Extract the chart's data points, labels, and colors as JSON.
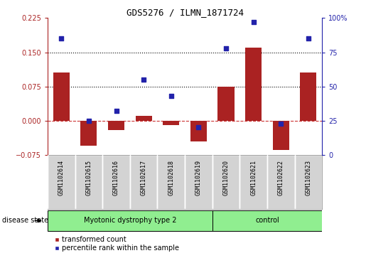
{
  "title": "GDS5276 / ILMN_1871724",
  "samples": [
    "GSM1102614",
    "GSM1102615",
    "GSM1102616",
    "GSM1102617",
    "GSM1102618",
    "GSM1102619",
    "GSM1102620",
    "GSM1102621",
    "GSM1102622",
    "GSM1102623"
  ],
  "red_bars": [
    0.105,
    -0.055,
    -0.02,
    0.01,
    -0.01,
    -0.045,
    0.075,
    0.16,
    -0.065,
    0.105
  ],
  "blue_dots": [
    85,
    25,
    32,
    55,
    43,
    20,
    78,
    97,
    23,
    85
  ],
  "bar_color": "#AA2222",
  "dot_color": "#2222AA",
  "ylim_left": [
    -0.075,
    0.225
  ],
  "ylim_right": [
    0,
    100
  ],
  "yticks_left": [
    -0.075,
    0,
    0.075,
    0.15,
    0.225
  ],
  "yticks_right": [
    0,
    25,
    50,
    75,
    100
  ],
  "hlines": [
    0.075,
    0.15
  ],
  "zero_line": 0,
  "group1_label": "Myotonic dystrophy type 2",
  "group2_label": "control",
  "group1_indices": [
    0,
    1,
    2,
    3,
    4,
    5
  ],
  "group2_indices": [
    6,
    7,
    8,
    9
  ],
  "group1_color": "#90EE90",
  "group2_color": "#90EE90",
  "label_bg_color": "#D3D3D3",
  "disease_state_label": "disease state",
  "legend1_label": "transformed count",
  "legend2_label": "percentile rank within the sample",
  "bar_width": 0.6
}
